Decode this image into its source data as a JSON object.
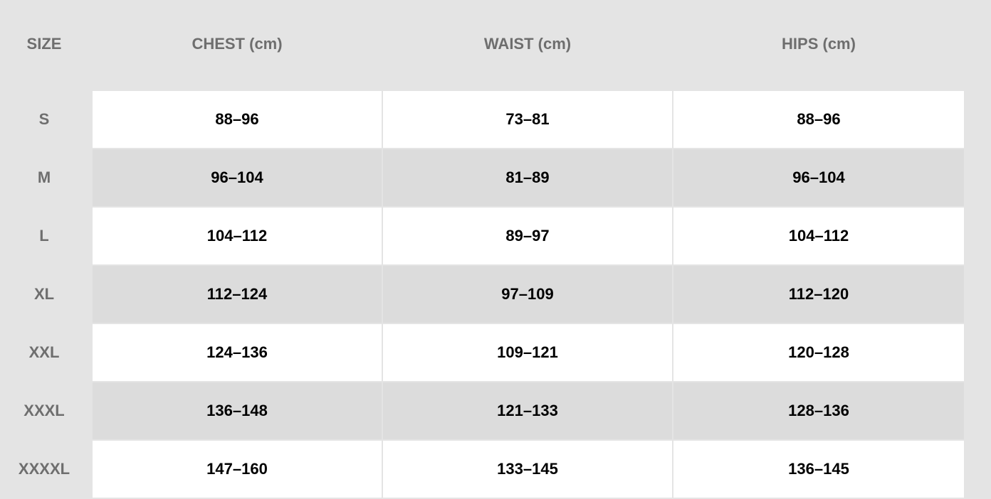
{
  "headers": {
    "size": "SIZE",
    "chest": "CHEST (cm)",
    "waist": "WAIST (cm)",
    "hips": "HIPS (cm)"
  },
  "rows": [
    {
      "size": "S",
      "chest": "88–96",
      "waist": "73–81",
      "hips": "88–96"
    },
    {
      "size": "M",
      "chest": "96–104",
      "waist": "81–89",
      "hips": "96–104"
    },
    {
      "size": "L",
      "chest": "104–112",
      "waist": "89–97",
      "hips": "104–112"
    },
    {
      "size": "XL",
      "chest": "112–124",
      "waist": "97–109",
      "hips": "112–120"
    },
    {
      "size": "XXL",
      "chest": "124–136",
      "waist": "109–121",
      "hips": "120–128"
    },
    {
      "size": "XXXL",
      "chest": "136–148",
      "waist": "121–133",
      "hips": "128–136"
    },
    {
      "size": "XXXXL",
      "chest": "147–160",
      "waist": "133–145",
      "hips": "136–145"
    }
  ]
}
